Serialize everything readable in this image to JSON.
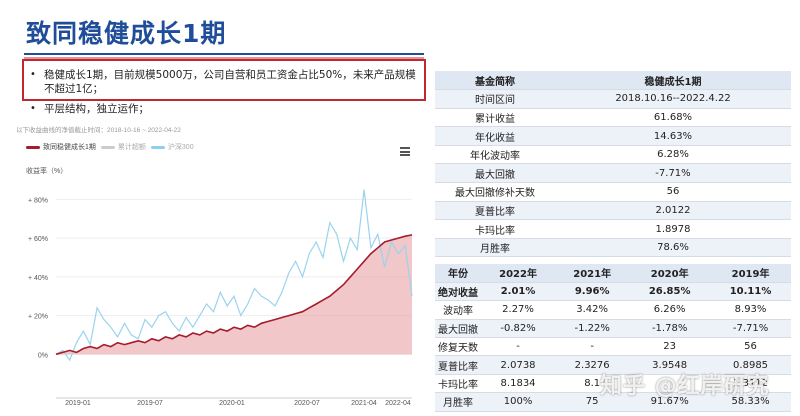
{
  "slide": {
    "title": "致同稳健成长1期",
    "bullets": [
      "稳健成长1期，目前规模5000万，公司自营和员工资金占比50%，未来产品规模不超过1亿；",
      "平层结构，独立运作；"
    ]
  },
  "chart": {
    "note": "以下收益曲线的净值截止时间：2018-10-16 ~ 2022-04-22",
    "legend": [
      {
        "name": "致同稳健成长1期",
        "color": "#a51c2c"
      },
      {
        "name": "累计超额",
        "color": "#cccccc"
      },
      {
        "name": "沪深300",
        "color": "#8fd0ee"
      }
    ],
    "ylabel": "收益率（%）",
    "colors": {
      "fund": "#a51c2c",
      "fund_fill": "#e8a2a5",
      "index": "#9ad3ef"
    }
  },
  "chart_data": {
    "type": "line",
    "x_ticks": [
      "2019-01",
      "2019-07",
      "2020-01",
      "2020-07",
      "2021-04",
      "2022-04"
    ],
    "y_ticks": [
      "0%",
      "+ 20%",
      "+ 40%",
      "+ 60%",
      "+ 80%"
    ],
    "ylim": [
      -5,
      90
    ],
    "series": [
      {
        "name": "致同稳健成长1期",
        "values": [
          0,
          1,
          2,
          1,
          3,
          4,
          3,
          5,
          4,
          6,
          5,
          6,
          7,
          6,
          8,
          7,
          9,
          8,
          10,
          9,
          11,
          10,
          12,
          11,
          13,
          12,
          14,
          13,
          15,
          14,
          16,
          17,
          18,
          19,
          20,
          21,
          22,
          24,
          26,
          28,
          30,
          33,
          36,
          40,
          44,
          48,
          52,
          55,
          58,
          59,
          60,
          61,
          61.68
        ]
      },
      {
        "name": "沪深300",
        "values": [
          0,
          2,
          -3,
          6,
          12,
          5,
          24,
          18,
          14,
          9,
          16,
          10,
          8,
          18,
          14,
          20,
          22,
          16,
          12,
          19,
          14,
          20,
          26,
          22,
          32,
          25,
          30,
          20,
          26,
          34,
          30,
          28,
          25,
          32,
          42,
          48,
          40,
          52,
          58,
          50,
          68,
          62,
          48,
          60,
          54,
          85,
          55,
          62,
          45,
          58,
          52,
          56,
          30
        ]
      }
    ]
  },
  "metrics": {
    "headers": [
      "基金简称",
      "稳健成长1期"
    ],
    "rows": [
      [
        "时间区间",
        "2018.10.16--2022.4.22"
      ],
      [
        "累计收益",
        "61.68%"
      ],
      [
        "年化收益",
        "14.63%"
      ],
      [
        "年化波动率",
        "6.28%"
      ],
      [
        "最大回撤",
        "-7.71%"
      ],
      [
        "最大回撤修补天数",
        "56"
      ],
      [
        "夏普比率",
        "2.0122"
      ],
      [
        "卡玛比率",
        "1.8978"
      ],
      [
        "月胜率",
        "78.6%"
      ]
    ]
  },
  "yearly": {
    "headers": [
      "年份",
      "2022年",
      "2021年",
      "2020年",
      "2019年"
    ],
    "rows": [
      [
        "绝对收益",
        "2.01%",
        "9.96%",
        "26.85%",
        "10.11%"
      ],
      [
        "波动率",
        "2.27%",
        "3.42%",
        "6.26%",
        "8.93%"
      ],
      [
        "最大回撤",
        "-0.82%",
        "-1.22%",
        "-1.78%",
        "-7.71%"
      ],
      [
        "修复天数",
        "-",
        "-",
        "23",
        "56"
      ],
      [
        "夏普比率",
        "2.0738",
        "2.3276",
        "3.9548",
        "0.8985"
      ],
      [
        "卡玛比率",
        "8.1834",
        "8.1",
        "",
        "1.3112"
      ],
      [
        "月胜率",
        "100%",
        "75",
        "91.67%",
        "58.33%"
      ]
    ]
  },
  "watermark": "知乎 @红岸研究"
}
